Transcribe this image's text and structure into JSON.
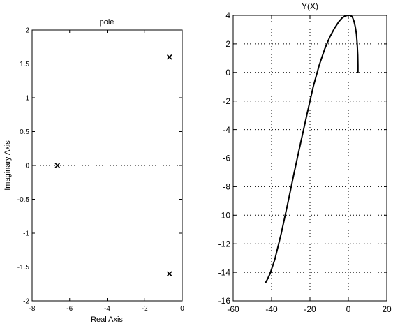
{
  "chart_data": [
    {
      "type": "scatter",
      "title": "pole",
      "xlabel": "Real Axis",
      "ylabel": "Imaginary Axis",
      "xlim": [
        -8,
        0
      ],
      "ylim": [
        -2,
        2
      ],
      "xticks": [
        -8,
        -6,
        -4,
        -2,
        0
      ],
      "yticks": [
        -2,
        -1.5,
        -1,
        -0.5,
        0,
        0.5,
        1,
        1.5,
        2
      ],
      "grid": false,
      "marker": "x",
      "reference_line_y": 0,
      "points": [
        {
          "x": -6.65,
          "y": 0
        },
        {
          "x": -0.68,
          "y": 1.6
        },
        {
          "x": -0.68,
          "y": -1.6
        }
      ]
    },
    {
      "type": "line",
      "title": "Y(X)",
      "xlabel": "",
      "ylabel": "",
      "xlim": [
        -60,
        20
      ],
      "ylim": [
        -16,
        4
      ],
      "xticks": [
        -60,
        -40,
        -20,
        0,
        20
      ],
      "yticks": [
        -16,
        -14,
        -12,
        -10,
        -8,
        -6,
        -4,
        -2,
        0,
        2,
        4
      ],
      "grid": true,
      "series": [
        {
          "x": [
            5.0,
            5.0,
            4.9,
            4.6,
            4.2,
            3.6,
            2.9,
            2.0,
            0.9,
            -0.4,
            -1.8,
            -3.4,
            -5.0,
            -7.2,
            -9.6,
            -12.3,
            -15.2,
            -18.3,
            -21.5,
            -24.8,
            -28.2,
            -31.6,
            -35.0,
            -38.3,
            -40.8,
            -42.2,
            -43.0
          ],
          "y": [
            0.0,
            0.5,
            1.2,
            2.0,
            2.7,
            3.2,
            3.6,
            3.9,
            4.0,
            4.0,
            3.95,
            3.8,
            3.55,
            3.1,
            2.5,
            1.65,
            0.5,
            -1.0,
            -2.9,
            -4.9,
            -7.0,
            -9.2,
            -11.3,
            -13.1,
            -14.1,
            -14.5,
            -14.7
          ]
        }
      ]
    }
  ]
}
